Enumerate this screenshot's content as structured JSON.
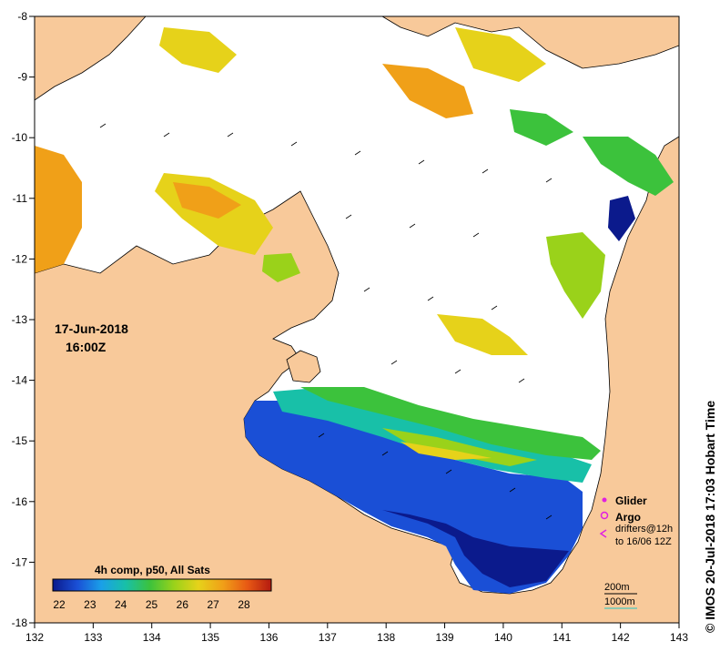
{
  "date_label": "17-Jun-2018",
  "time_label": "16:00Z",
  "credit": "© IMOS 20-Jul-2018 17:03 Hobart Time",
  "colorbar": {
    "title": "4h comp, p50, All Sats",
    "ticks": [
      "22",
      "23",
      "24",
      "25",
      "26",
      "27",
      "28"
    ],
    "stops": [
      "#0b1a8c",
      "#1a4fd6",
      "#1aa0e8",
      "#18c0a8",
      "#3cc23c",
      "#9ad21a",
      "#e6d21a",
      "#f0a018",
      "#e85a14",
      "#b41a10"
    ]
  },
  "x_ticks": [
    "132",
    "133",
    "134",
    "135",
    "136",
    "137",
    "138",
    "139",
    "140",
    "141",
    "142",
    "143"
  ],
  "y_ticks": [
    "-8",
    "-9",
    "-10",
    "-11",
    "-12",
    "-13",
    "-14",
    "-15",
    "-16",
    "-17",
    "-18"
  ],
  "legend": {
    "glider": "Glider",
    "argo": "Argo",
    "drifters_line1": "drifters@12h",
    "drifters_line2": "to 16/06 12Z",
    "depth_200": "200m",
    "depth_1000": "1000m"
  },
  "colors": {
    "land": "#f8c99a",
    "nodata": "#ffffff",
    "glider": "#e020e0",
    "argo": "#e020e0",
    "drifter": "#e020e0",
    "depth_200": "#000000",
    "depth_1000": "#20c8c8"
  }
}
